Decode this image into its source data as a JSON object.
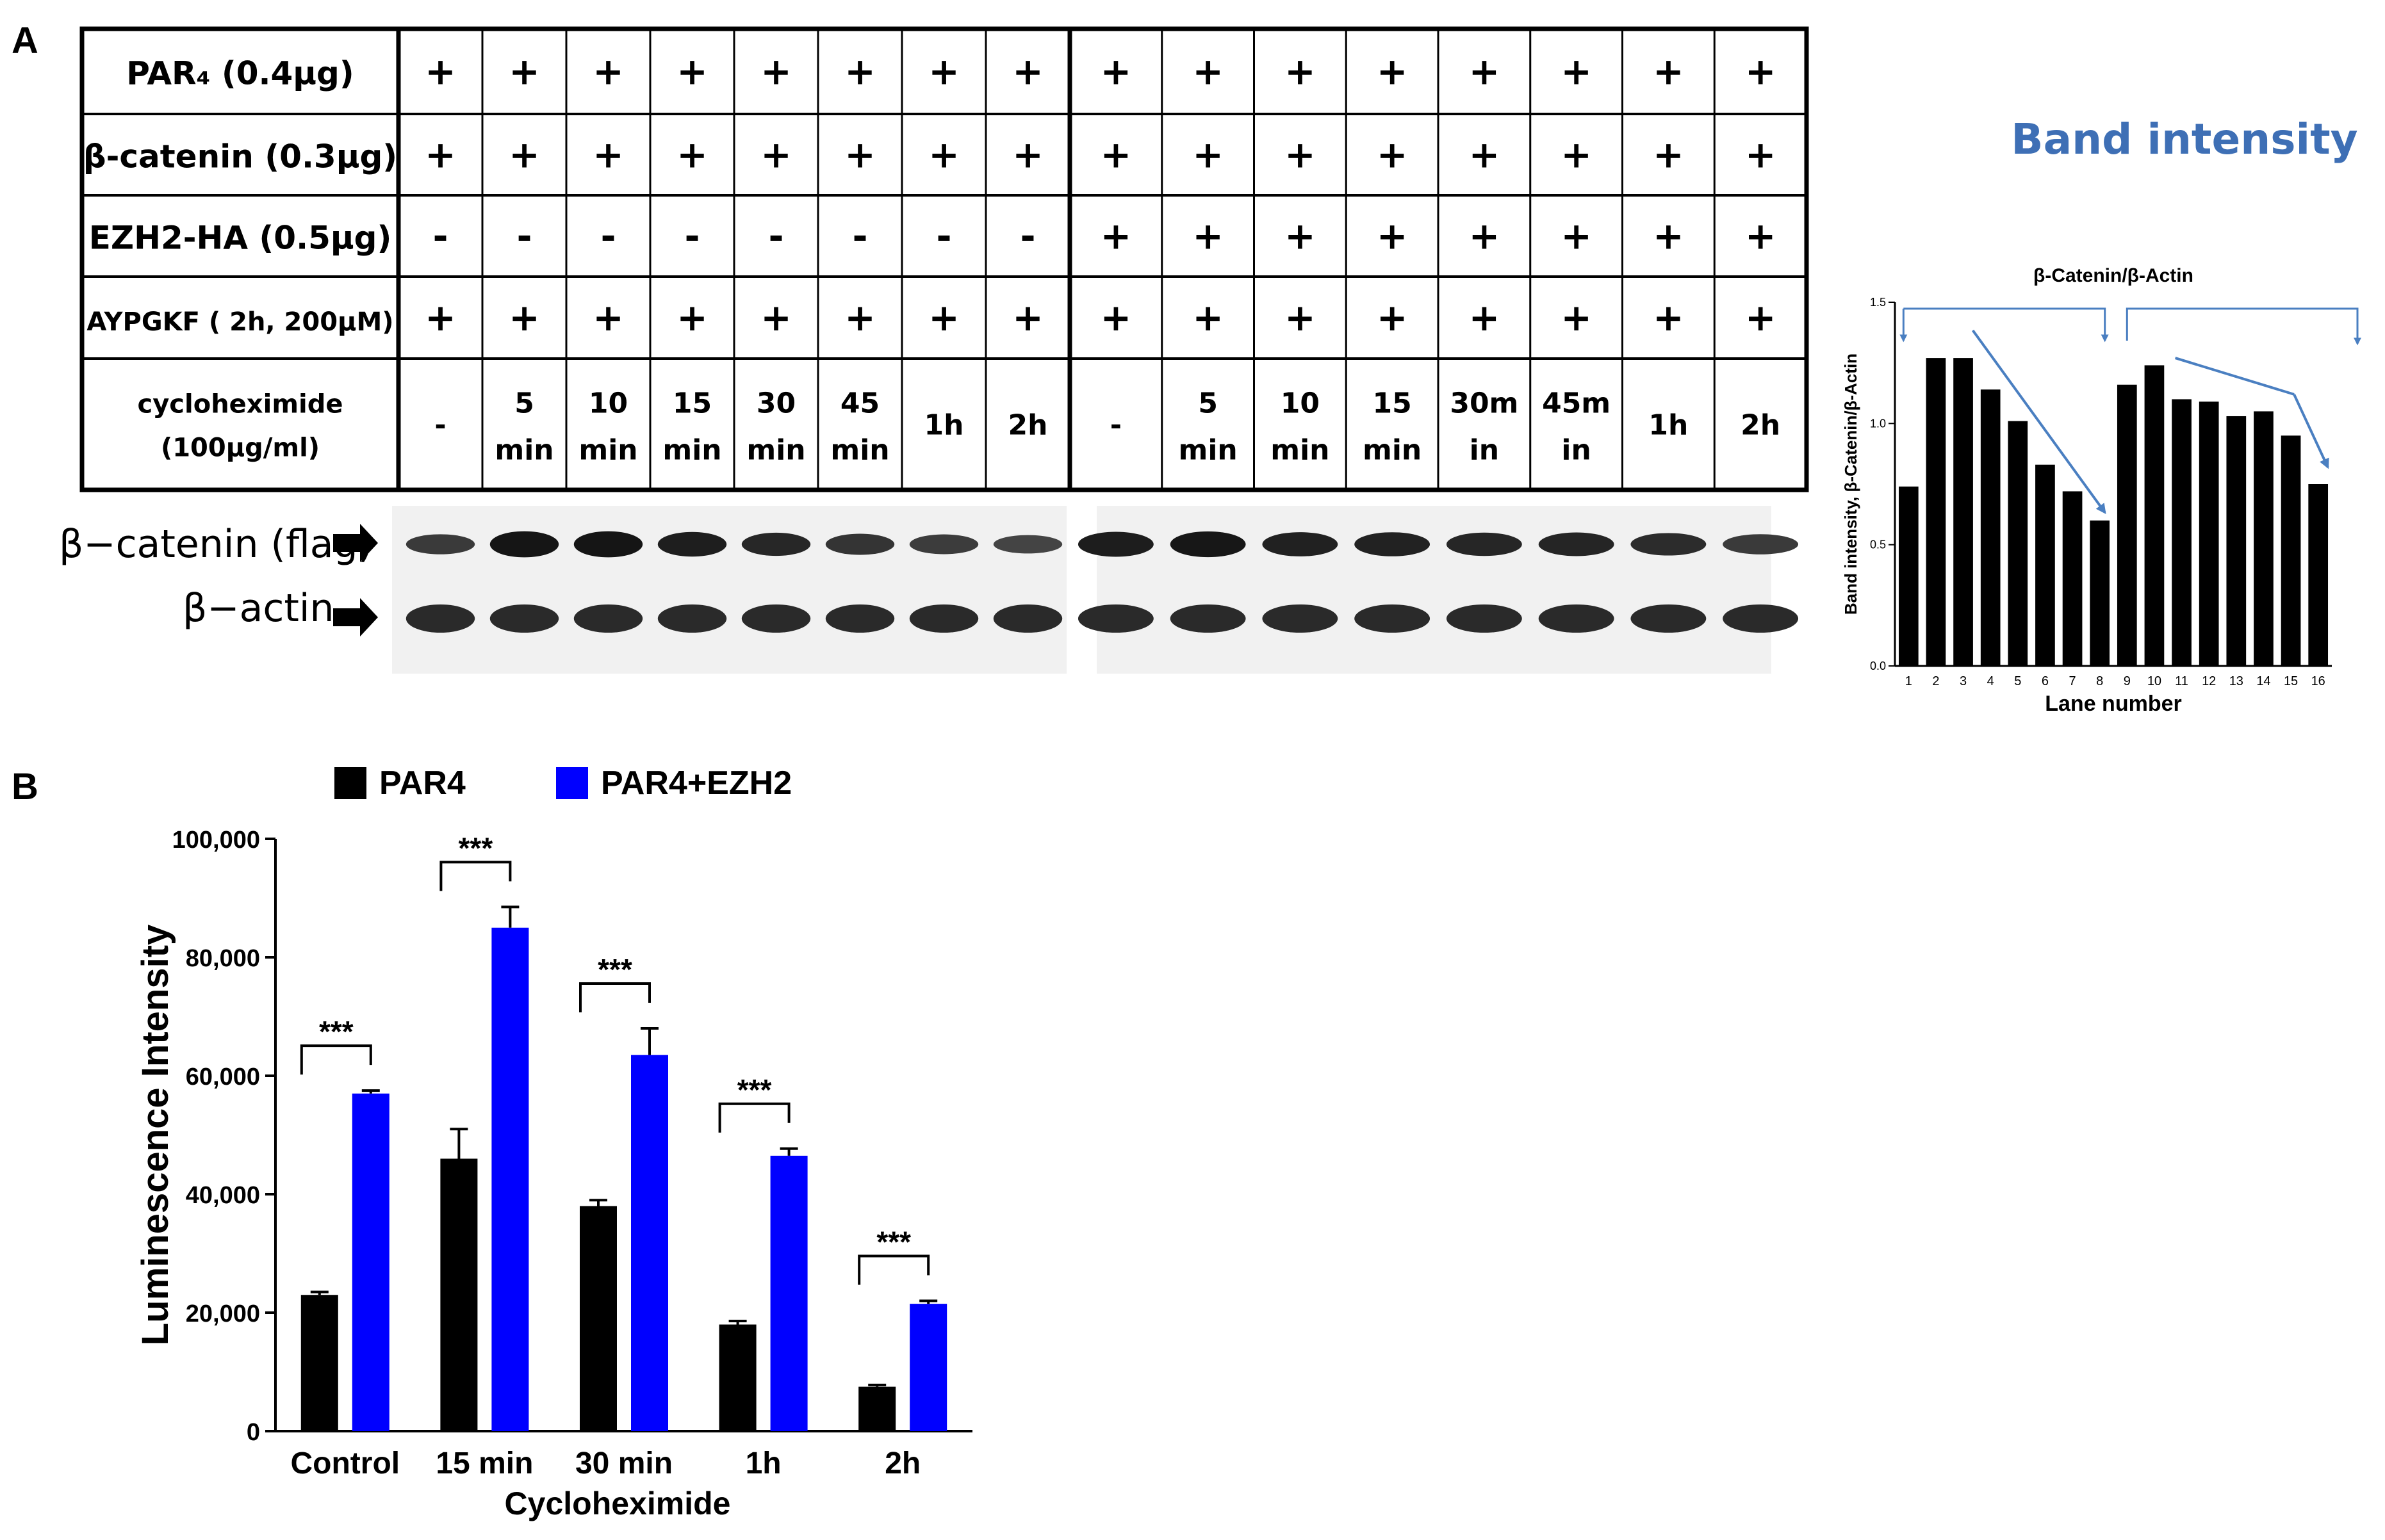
{
  "panel_a": {
    "label": "A",
    "table": {
      "rows": [
        {
          "label": "PAR₄ (0.4µg)",
          "values": [
            "+",
            "+",
            "+",
            "+",
            "+",
            "+",
            "+",
            "+",
            "+",
            "+",
            "+",
            "+",
            "+",
            "+",
            "+",
            "+"
          ]
        },
        {
          "label": "β-catenin (0.3µg)",
          "values": [
            "+",
            "+",
            "+",
            "+",
            "+",
            "+",
            "+",
            "+",
            "+",
            "+",
            "+",
            "+",
            "+",
            "+",
            "+",
            "+"
          ]
        },
        {
          "label": "EZH2-HA (0.5µg)",
          "values": [
            "-",
            "-",
            "-",
            "-",
            "-",
            "-",
            "-",
            "-",
            "+",
            "+",
            "+",
            "+",
            "+",
            "+",
            "+",
            "+"
          ]
        },
        {
          "label": "AYPGKF ( 2h, 200µM)",
          "values": [
            "+",
            "+",
            "+",
            "+",
            "+",
            "+",
            "+",
            "+",
            "+",
            "+",
            "+",
            "+",
            "+",
            "+",
            "+",
            "+"
          ]
        }
      ],
      "cyclo_label_line1": "cycloheximide",
      "cyclo_label_line2": "(100µg/ml)",
      "cyclo_values": [
        [
          "-"
        ],
        [
          "5",
          "min"
        ],
        [
          "10",
          "min"
        ],
        [
          "15",
          "min"
        ],
        [
          "30",
          "min"
        ],
        [
          "45",
          "min"
        ],
        [
          "1h"
        ],
        [
          "2h"
        ],
        [
          "-"
        ],
        [
          "5",
          "min"
        ],
        [
          "10",
          "min"
        ],
        [
          "15",
          "min"
        ],
        [
          "30m",
          "in"
        ],
        [
          "45m",
          "in"
        ],
        [
          "1h"
        ],
        [
          "2h"
        ]
      ]
    },
    "blot_labels": {
      "beta_catenin": "β−catenin (flag)",
      "beta_actin": "β−actin"
    },
    "band_intensity_title": "Band intensity"
  },
  "panel_b": {
    "label": "B"
  },
  "chart_data": [
    {
      "type": "bar",
      "title": "β-Catenin/β-Actin",
      "xlabel": "Lane number",
      "ylabel": "Band intensity, β-Catenin/β-Actin",
      "categories": [
        "1",
        "2",
        "3",
        "4",
        "5",
        "6",
        "7",
        "8",
        "9",
        "10",
        "11",
        "12",
        "13",
        "14",
        "15",
        "16"
      ],
      "values": [
        0.74,
        1.27,
        1.27,
        1.14,
        1.01,
        0.83,
        0.72,
        0.6,
        1.16,
        1.24,
        1.1,
        1.09,
        1.03,
        1.05,
        0.95,
        0.75
      ],
      "yticks": [
        "0.0",
        "0.5",
        "1.0",
        "1.5"
      ],
      "ylim": [
        0,
        1.5
      ],
      "bar_color": "#000000",
      "arrow_color": "#4a7fc1"
    },
    {
      "type": "bar",
      "xlabel": "Cycloheximide",
      "ylabel": "Luminescence Intensity",
      "categories": [
        "Control",
        "15 min",
        "30 min",
        "1h",
        "2h"
      ],
      "series": [
        {
          "name": "PAR4",
          "color": "#000000",
          "values": [
            23000,
            46000,
            38000,
            18000,
            7500
          ],
          "errors": [
            500,
            5000,
            1000,
            600,
            300
          ]
        },
        {
          "name": "PAR4+EZH2",
          "color": "#0000ff",
          "values": [
            57000,
            85000,
            63500,
            46500,
            21500
          ],
          "errors": [
            500,
            3500,
            4500,
            1200,
            500
          ]
        }
      ],
      "yticks": [
        "0",
        "20,000",
        "40,000",
        "60,000",
        "80,000",
        "100,000"
      ],
      "ylim": [
        0,
        100000
      ],
      "significance": [
        "***",
        "***",
        "***",
        "***",
        "***"
      ]
    }
  ]
}
